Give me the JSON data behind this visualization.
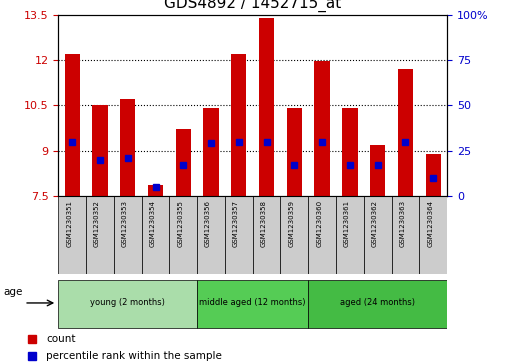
{
  "title": "GDS4892 / 1452715_at",
  "samples": [
    "GSM1230351",
    "GSM1230352",
    "GSM1230353",
    "GSM1230354",
    "GSM1230355",
    "GSM1230356",
    "GSM1230357",
    "GSM1230358",
    "GSM1230359",
    "GSM1230360",
    "GSM1230361",
    "GSM1230362",
    "GSM1230363",
    "GSM1230364"
  ],
  "counts": [
    12.2,
    10.5,
    10.7,
    7.85,
    9.7,
    10.4,
    12.2,
    13.4,
    10.4,
    11.95,
    10.4,
    9.2,
    11.7,
    8.9
  ],
  "percentile_values": [
    30,
    20,
    21,
    5,
    17,
    29,
    30,
    30,
    17,
    30,
    17,
    17,
    30,
    10
  ],
  "ylim_left": [
    7.5,
    13.5
  ],
  "ylim_right": [
    0,
    100
  ],
  "yticks_left": [
    7.5,
    9.0,
    10.5,
    12.0,
    13.5
  ],
  "yticks_right": [
    0,
    25,
    50,
    75,
    100
  ],
  "ytick_labels_left": [
    "7.5",
    "9",
    "10.5",
    "12",
    "13.5"
  ],
  "ytick_labels_right": [
    "0",
    "25",
    "50",
    "75",
    "100%"
  ],
  "bar_bottom": 7.5,
  "bar_color": "#cc0000",
  "percentile_color": "#0000cc",
  "groups": [
    {
      "label": "young (2 months)",
      "samples": [
        0,
        1,
        2,
        3,
        4
      ],
      "color": "#aaddaa"
    },
    {
      "label": "middle aged (12 months)",
      "samples": [
        5,
        6,
        7,
        8
      ],
      "color": "#55cc55"
    },
    {
      "label": "aged (24 months)",
      "samples": [
        9,
        10,
        11,
        12,
        13
      ],
      "color": "#44bb44"
    }
  ],
  "age_label": "age",
  "legend_count_label": "count",
  "legend_percentile_label": "percentile rank within the sample",
  "grid_color": "black",
  "background_color": "#ffffff",
  "tick_area_color": "#cccccc",
  "title_fontsize": 11,
  "axis_fontsize": 8,
  "label_fontsize": 8,
  "bar_width": 0.55
}
